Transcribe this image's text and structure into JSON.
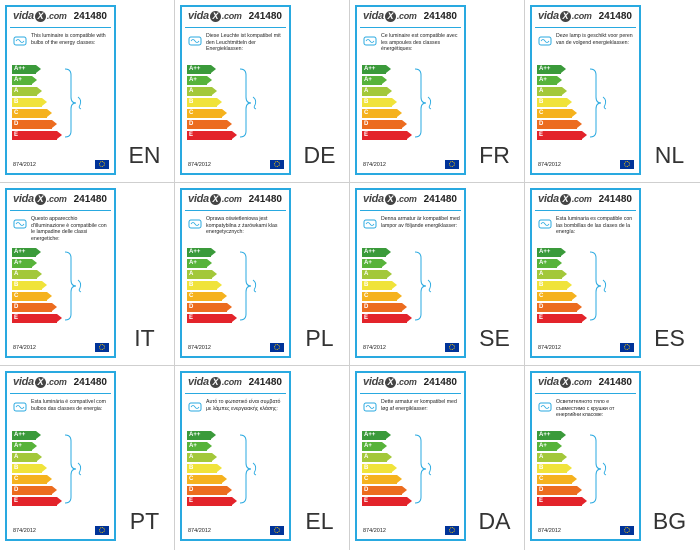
{
  "product_code": "241480",
  "regulation": "874/2012",
  "brand": {
    "pre": "vida",
    "mid": "X",
    "post": ".com"
  },
  "bar_classes": [
    {
      "label": "A++",
      "color": "#3a9a3a"
    },
    {
      "label": "A+",
      "color": "#57b33a"
    },
    {
      "label": "A",
      "color": "#a3c83a"
    },
    {
      "label": "B",
      "color": "#f0e33a"
    },
    {
      "label": "C",
      "color": "#f5b21e"
    },
    {
      "label": "D",
      "color": "#ec6c1f"
    },
    {
      "label": "E",
      "color": "#e3232a"
    }
  ],
  "labels": [
    {
      "lang": "EN",
      "text": "This luminaire is compatible with bulbs of the energy classes:"
    },
    {
      "lang": "DE",
      "text": "Diese Leuchte ist kompatibel mit den Leuchtmitteln der Energieklassen:"
    },
    {
      "lang": "FR",
      "text": "Ce luminaire est compatible avec les ampoules des classes énergétiques:"
    },
    {
      "lang": "NL",
      "text": "Deze lamp is geschikt voor peren van de volgend energieklassen:"
    },
    {
      "lang": "IT",
      "text": "Questo apparecchio d'illuminazione è compatibile con le lampadine delle classi energetiche:"
    },
    {
      "lang": "PL",
      "text": "Oprawa oświetleniowa jest kompatybilna z żarówkami klas energetycznych:"
    },
    {
      "lang": "SE",
      "text": "Denna armatur är kompatibel med lampor av följande energiklasser:"
    },
    {
      "lang": "ES",
      "text": "Esta luminaria es compatible con las bombillas de las clases de la energía:"
    },
    {
      "lang": "PT",
      "text": "Esta luminária é compatível com bulbos das classes de energia:"
    },
    {
      "lang": "EL",
      "text": "Αυτό το φωτιστικό είναι συμβατό με λάμπες ενεργειακής κλάσης:"
    },
    {
      "lang": "DA",
      "text": "Dette armatur er kompatibel med løg af energiklasser:"
    },
    {
      "lang": "BG",
      "text": "Осветителното тяло е съвместимо с крушки от енергийни класове:"
    }
  ]
}
